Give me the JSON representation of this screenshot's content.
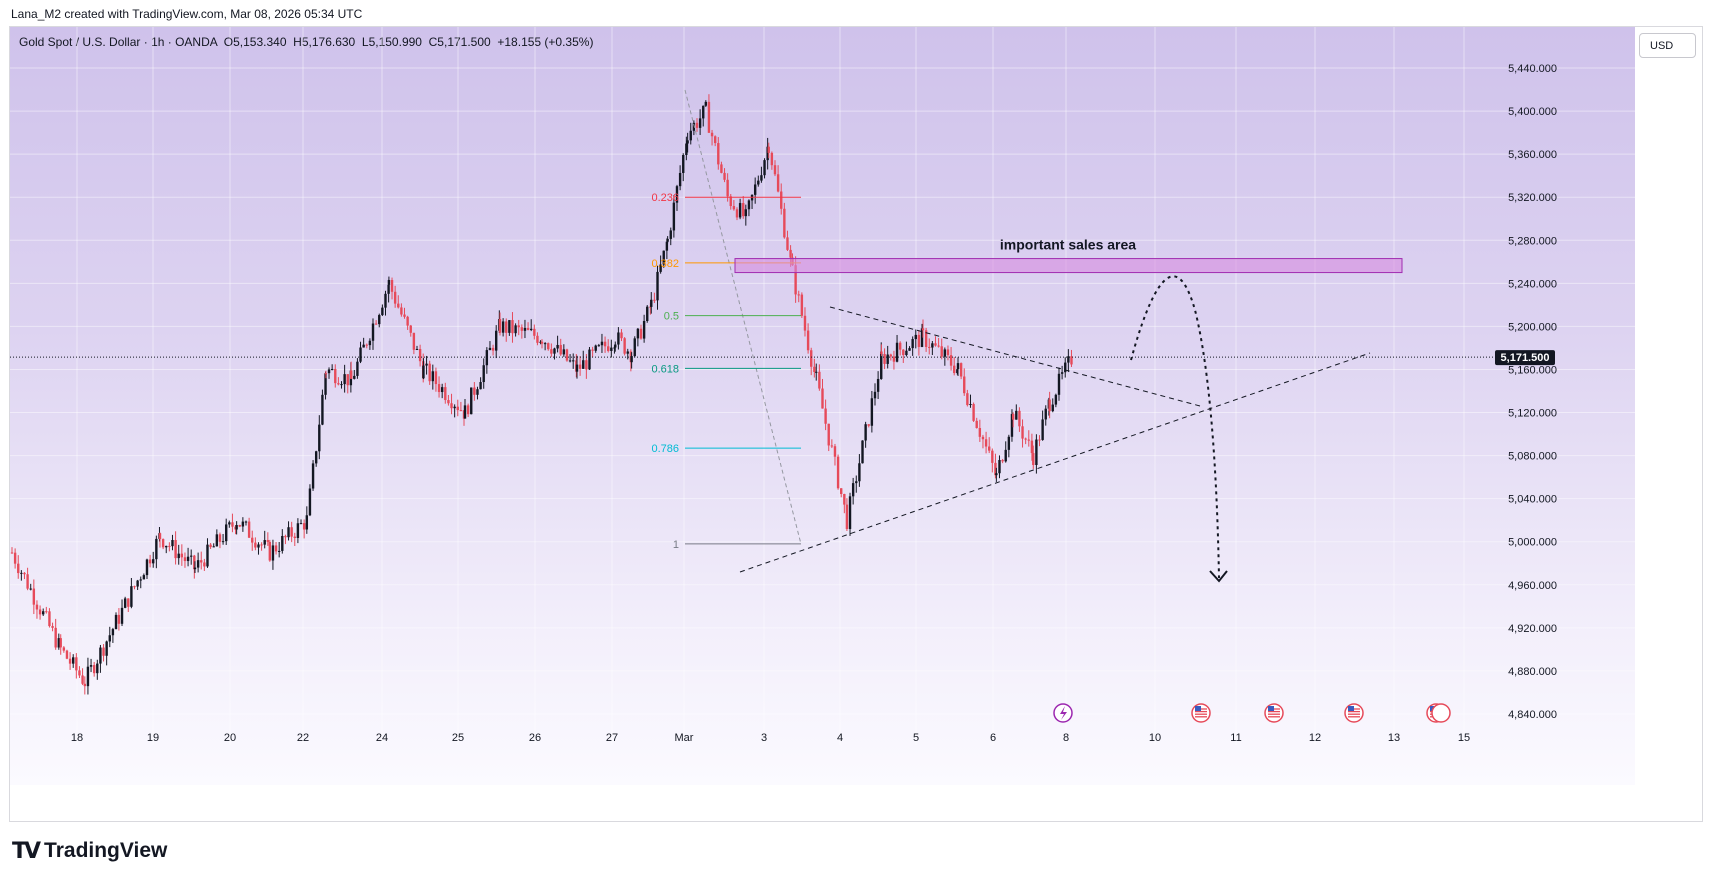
{
  "header": {
    "text": "Lana_M2 created with TradingView.com, Mar 08, 2026 05:34 UTC"
  },
  "symbol": {
    "name": "Gold Spot / U.S. Dollar",
    "interval": "1h",
    "source": "OANDA",
    "open": "O5,153.340",
    "high": "H5,176.630",
    "low": "L5,150.990",
    "close": "C5,171.500",
    "change": "+18.155 (+0.35%)"
  },
  "currency_button": "USD",
  "branding": {
    "name": "TradingView"
  },
  "colors": {
    "bull": "#131722",
    "bear": "#e64a5a",
    "zone": "#d78ce0"
  },
  "chart_data": {
    "type": "candlestick",
    "title": "Gold Spot / U.S. Dollar · 1h · OANDA",
    "ylim": [
      4820,
      5480
    ],
    "y_ticks": [
      "4,840.000",
      "4,880.000",
      "4,920.000",
      "4,960.000",
      "5,000.000",
      "5,040.000",
      "5,080.000",
      "5,120.000",
      "5,160.000",
      "5,200.000",
      "5,240.000",
      "5,280.000",
      "5,320.000",
      "5,360.000",
      "5,400.000",
      "5,440.000"
    ],
    "x_ticks": [
      "18",
      "19",
      "20",
      "22",
      "24",
      "25",
      "26",
      "27",
      "Mar",
      "3",
      "4",
      "5",
      "6",
      "8",
      "10",
      "11",
      "12",
      "13",
      "15"
    ],
    "last_price": "5,171.500",
    "anchors": [
      [
        "Feb 17",
        4990
      ],
      [
        "Feb 17",
        4900
      ],
      [
        "Feb 18",
        4870
      ],
      [
        "Feb 18",
        4930
      ],
      [
        "Feb 19",
        5005
      ],
      [
        "Feb 19",
        4975
      ],
      [
        "Feb 20",
        5020
      ],
      [
        "Feb 20",
        4990
      ],
      [
        "Feb 22",
        5020
      ],
      [
        "Feb 22",
        5160
      ],
      [
        "Feb 23",
        5150
      ],
      [
        "Feb 24",
        5240
      ],
      [
        "Feb 24",
        5160
      ],
      [
        "Feb 25",
        5120
      ],
      [
        "Feb 25",
        5200
      ],
      [
        "Feb 26",
        5190
      ],
      [
        "Feb 26",
        5160
      ],
      [
        "Feb 27",
        5190
      ],
      [
        "Feb 27",
        5175
      ],
      [
        "Feb 28",
        5220
      ],
      [
        "Feb 28",
        5280
      ],
      [
        "Mar 1",
        5380
      ],
      [
        "Mar 1",
        5400
      ],
      [
        "Mar 2",
        5320
      ],
      [
        "Mar 2",
        5300
      ],
      [
        "Mar 3",
        5370
      ],
      [
        "Mar 3",
        5250
      ],
      [
        "Mar 3",
        5150
      ],
      [
        "Mar 4",
        5020
      ],
      [
        "Mar 4",
        5170
      ],
      [
        "Mar 5",
        5190
      ],
      [
        "Mar 5",
        5160
      ],
      [
        "Mar 6",
        5060
      ],
      [
        "Mar 6",
        5120
      ],
      [
        "Mar 7",
        5080
      ],
      [
        "Mar 7",
        5130
      ],
      [
        "Mar 8",
        5171.5
      ]
    ],
    "fibonacci": {
      "levels": [
        {
          "label": "0.236",
          "price": 5320,
          "color": "#f23645"
        },
        {
          "label": "0.382",
          "price": 5259,
          "color": "#ff9800"
        },
        {
          "label": "0.5",
          "price": 5210,
          "color": "#4caf50"
        },
        {
          "label": "0.618",
          "price": 5161,
          "color": "#089981"
        },
        {
          "label": "0.786",
          "price": 5087,
          "color": "#00bcd4"
        },
        {
          "label": "1",
          "price": 4998,
          "color": "#787b86"
        }
      ]
    },
    "annotations": [
      {
        "text": "important sales area",
        "price_from": 5250,
        "price_to": 5263
      }
    ]
  }
}
